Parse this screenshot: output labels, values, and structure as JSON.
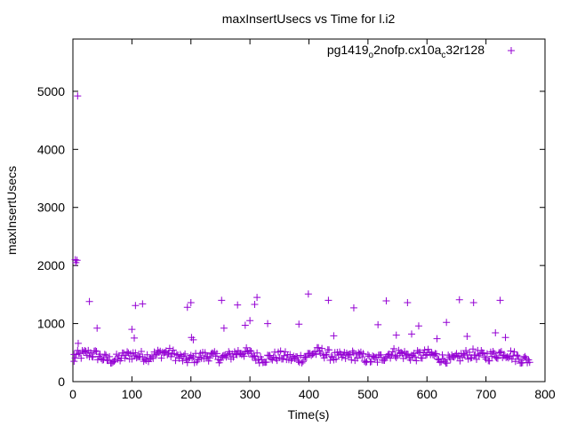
{
  "chart_data": {
    "type": "scatter",
    "title": "maxInsertUsecs vs Time for l.i2",
    "xlabel": "Time(s)",
    "ylabel": "maxInsertUsecs",
    "xlim": [
      0,
      800
    ],
    "ylim": [
      0,
      5900
    ],
    "x_ticks": [
      0,
      100,
      200,
      300,
      400,
      500,
      600,
      700,
      800
    ],
    "y_ticks": [
      0,
      1000,
      2000,
      3000,
      4000,
      5000
    ],
    "grid": false,
    "legend_position": "top-right",
    "marker": "+",
    "series": [
      {
        "name_parts": [
          "pg1419",
          "o",
          "2nofp.cx10a",
          "c",
          "32r128"
        ],
        "color": "#9400d3",
        "outliers": [
          [
            2,
            350
          ],
          [
            4,
            2100
          ],
          [
            5,
            2050
          ],
          [
            7,
            2090
          ],
          [
            8,
            4920
          ],
          [
            9,
            660
          ],
          [
            28,
            1380
          ],
          [
            41,
            920
          ],
          [
            100,
            900
          ],
          [
            104,
            750
          ],
          [
            106,
            1310
          ],
          [
            118,
            1340
          ],
          [
            194,
            1280
          ],
          [
            200,
            1360
          ],
          [
            201,
            760
          ],
          [
            204,
            720
          ],
          [
            252,
            1400
          ],
          [
            256,
            920
          ],
          [
            279,
            1320
          ],
          [
            292,
            970
          ],
          [
            300,
            1050
          ],
          [
            308,
            1330
          ],
          [
            312,
            1450
          ],
          [
            330,
            1000
          ],
          [
            383,
            990
          ],
          [
            399,
            1510
          ],
          [
            433,
            1400
          ],
          [
            442,
            790
          ],
          [
            476,
            1270
          ],
          [
            517,
            980
          ],
          [
            531,
            1390
          ],
          [
            548,
            800
          ],
          [
            567,
            1360
          ],
          [
            574,
            820
          ],
          [
            586,
            960
          ],
          [
            617,
            740
          ],
          [
            633,
            1020
          ],
          [
            655,
            1410
          ],
          [
            668,
            780
          ],
          [
            679,
            1360
          ],
          [
            716,
            840
          ],
          [
            724,
            1400
          ],
          [
            733,
            760
          ]
        ],
        "bulk": {
          "x_range": [
            2,
            775
          ],
          "step": 2,
          "y_low": 320,
          "y_high": 600
        }
      }
    ]
  }
}
